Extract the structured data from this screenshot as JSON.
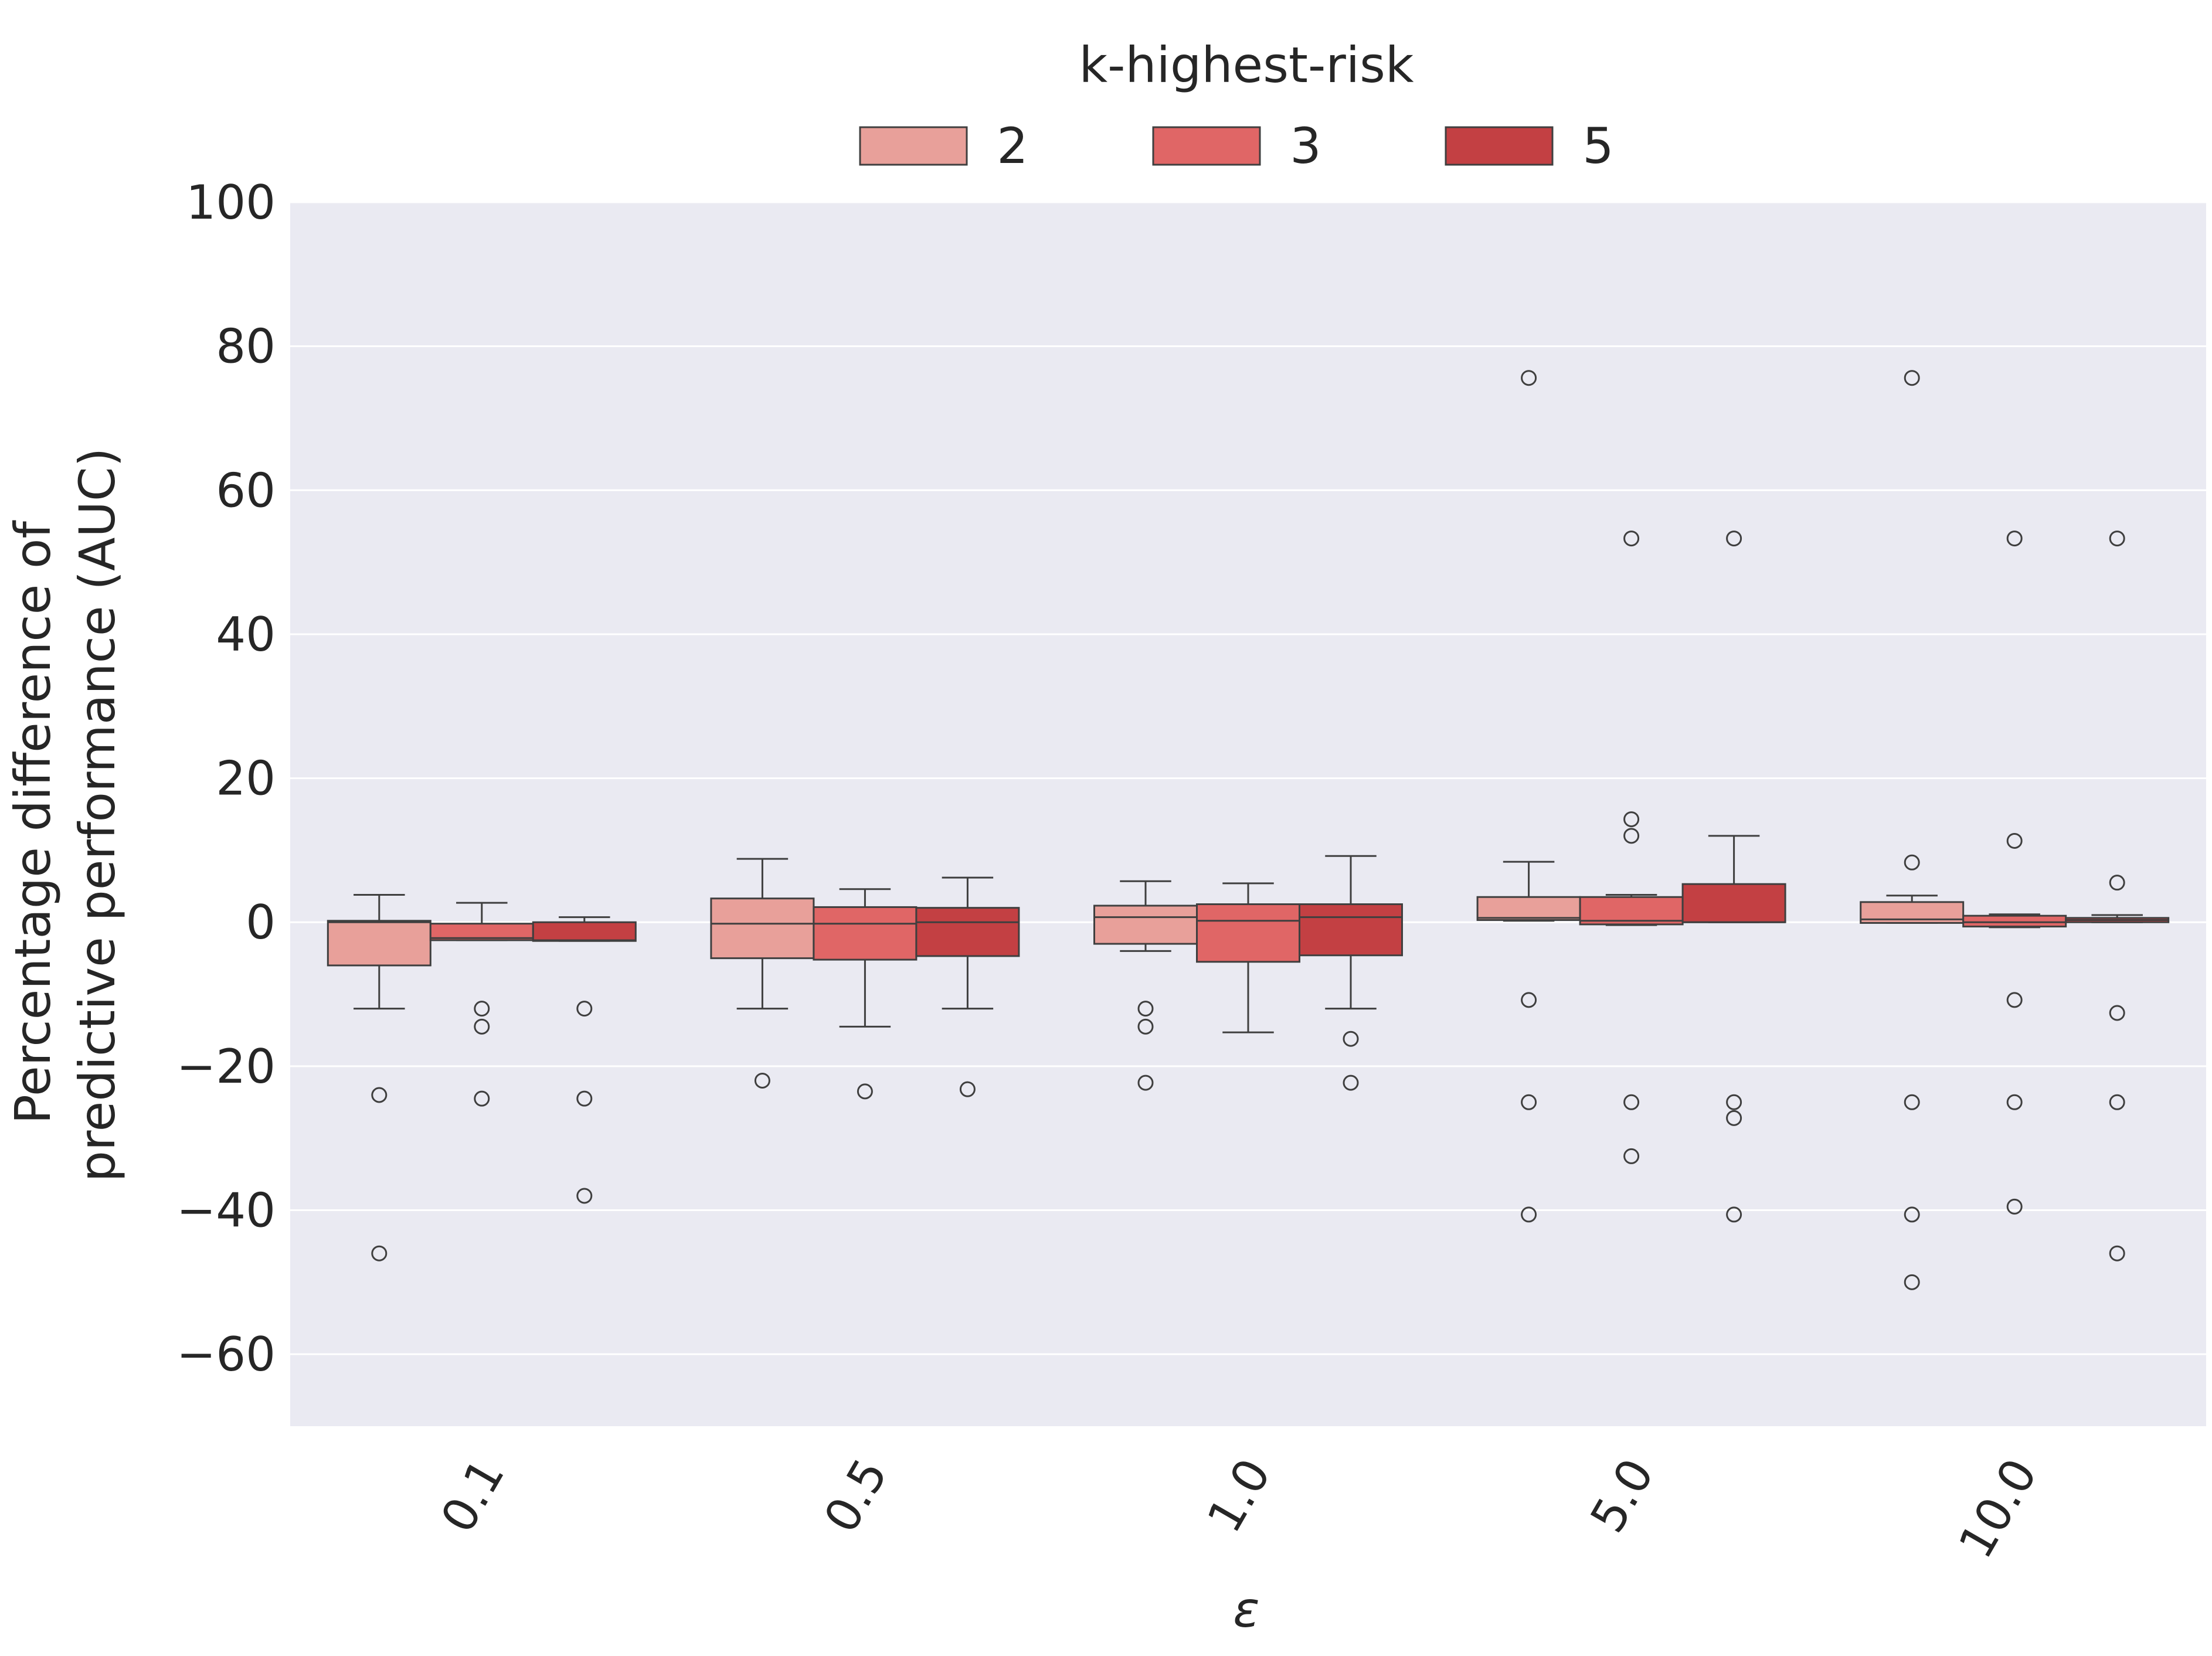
{
  "chart_data": {
    "type": "box",
    "xlabel": "ε",
    "ylabel": "Percentage difference of\npredictive performance (AUC)",
    "ylim": [
      -70,
      100
    ],
    "yticks": [
      -60,
      -40,
      -20,
      0,
      20,
      40,
      60,
      80,
      100
    ],
    "ytick_labels": [
      "−60",
      "−40",
      "−20",
      "0",
      "20",
      "40",
      "60",
      "80",
      "100"
    ],
    "categories": [
      "0.1",
      "0.5",
      "1.0",
      "5.0",
      "10.0"
    ],
    "grid": true,
    "legend": {
      "title": "k-highest-risk",
      "placement": "top-center"
    },
    "series": [
      {
        "name": "2",
        "color": "#e8a09a",
        "boxes": [
          {
            "whislo": -12,
            "q1": -6,
            "med": 0,
            "q3": 0.2,
            "whishi": 3.8,
            "fliers": [
              -24,
              -46
            ]
          },
          {
            "whislo": -12,
            "q1": -5,
            "med": -0.2,
            "q3": 3.3,
            "whishi": 8.8,
            "fliers": [
              -22
            ]
          },
          {
            "whislo": -4,
            "q1": -3,
            "med": 0.7,
            "q3": 2.3,
            "whishi": 5.7,
            "fliers": [
              -12,
              -14.5,
              -22.3
            ]
          },
          {
            "whislo": 0.2,
            "q1": 0.3,
            "med": 0.6,
            "q3": 3.5,
            "whishi": 8.4,
            "fliers": [
              75.6,
              -10.8,
              -25,
              -40.6
            ]
          },
          {
            "whislo": -0.1,
            "q1": -0.1,
            "med": 0.4,
            "q3": 2.8,
            "whishi": 3.7,
            "fliers": [
              75.6,
              8.3,
              -25,
              -40.6,
              -50
            ]
          }
        ]
      },
      {
        "name": "3",
        "color": "#e06666",
        "boxes": [
          {
            "whislo": -2.5,
            "q1": -2.5,
            "med": -2.2,
            "q3": -0.2,
            "whishi": 2.7,
            "fliers": [
              -12,
              -14.5,
              -24.5
            ]
          },
          {
            "whislo": -14.5,
            "q1": -5.2,
            "med": -0.2,
            "q3": 2.1,
            "whishi": 4.6,
            "fliers": [
              -23.5
            ]
          },
          {
            "whislo": -15.3,
            "q1": -5.5,
            "med": 0.2,
            "q3": 2.5,
            "whishi": 5.4,
            "fliers": []
          },
          {
            "whislo": -0.4,
            "q1": -0.3,
            "med": 0.2,
            "q3": 3.5,
            "whishi": 3.8,
            "fliers": [
              53.3,
              14.3,
              12,
              -25,
              -32.5
            ]
          },
          {
            "whislo": -0.7,
            "q1": -0.6,
            "med": 0,
            "q3": 0.9,
            "whishi": 1.1,
            "fliers": [
              53.3,
              11.3,
              -10.8,
              -25,
              -39.5
            ]
          }
        ]
      },
      {
        "name": "5",
        "color": "#c34043",
        "boxes": [
          {
            "whislo": -2.6,
            "q1": -2.6,
            "med": -2.5,
            "q3": 0,
            "whishi": 0.7,
            "fliers": [
              -12,
              -24.5,
              -38
            ]
          },
          {
            "whislo": -12,
            "q1": -4.7,
            "med": 0,
            "q3": 2,
            "whishi": 6.2,
            "fliers": [
              -23.2
            ]
          },
          {
            "whislo": -12,
            "q1": -4.6,
            "med": 0.7,
            "q3": 2.5,
            "whishi": 9.2,
            "fliers": [
              -16.2,
              -22.3
            ]
          },
          {
            "whislo": 0,
            "q1": 0,
            "med": 0,
            "q3": 5.3,
            "whishi": 12,
            "fliers": [
              53.3,
              -25,
              -27.2,
              -40.6
            ]
          },
          {
            "whislo": 0,
            "q1": 0,
            "med": 0.3,
            "q3": 0.6,
            "whishi": 1,
            "fliers": [
              53.3,
              5.5,
              -12.6,
              -25,
              -46
            ]
          }
        ]
      }
    ]
  }
}
